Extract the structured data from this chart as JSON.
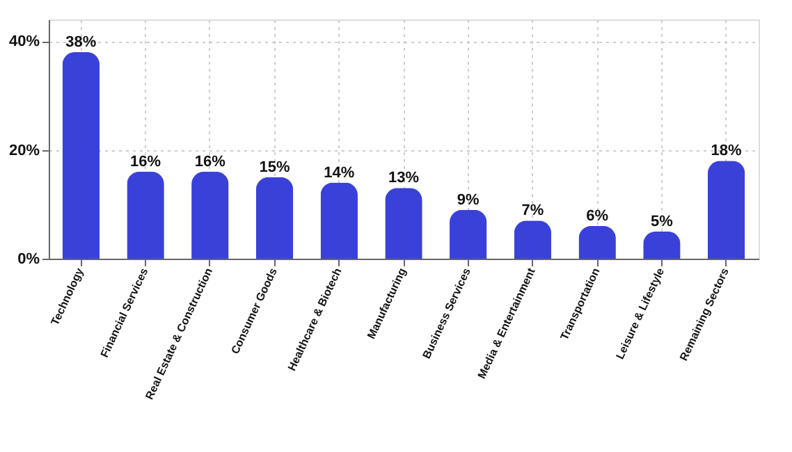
{
  "chart_data": {
    "type": "bar",
    "categories": [
      "Technology",
      "Financial Services",
      "Real Estate & Construction",
      "Consumer Goods",
      "Healthcare & Biotech",
      "Manufacturing",
      "Business Services",
      "Media & Entertainment",
      "Transportation",
      "Leisure & Lifestyle",
      "Remaining Sectors"
    ],
    "values": [
      38,
      16,
      16,
      15,
      14,
      13,
      9,
      7,
      6,
      5,
      18
    ],
    "value_labels": [
      "38%",
      "16%",
      "16%",
      "15%",
      "14%",
      "13%",
      "9%",
      "7%",
      "6%",
      "5%",
      "18%"
    ],
    "color": "#3a41d9",
    "ylim": [
      0,
      44
    ],
    "yticks": [
      {
        "value": 0,
        "label": "0%"
      },
      {
        "value": 20,
        "label": "20%"
      },
      {
        "value": 40,
        "label": "40%"
      }
    ],
    "grid": true
  }
}
